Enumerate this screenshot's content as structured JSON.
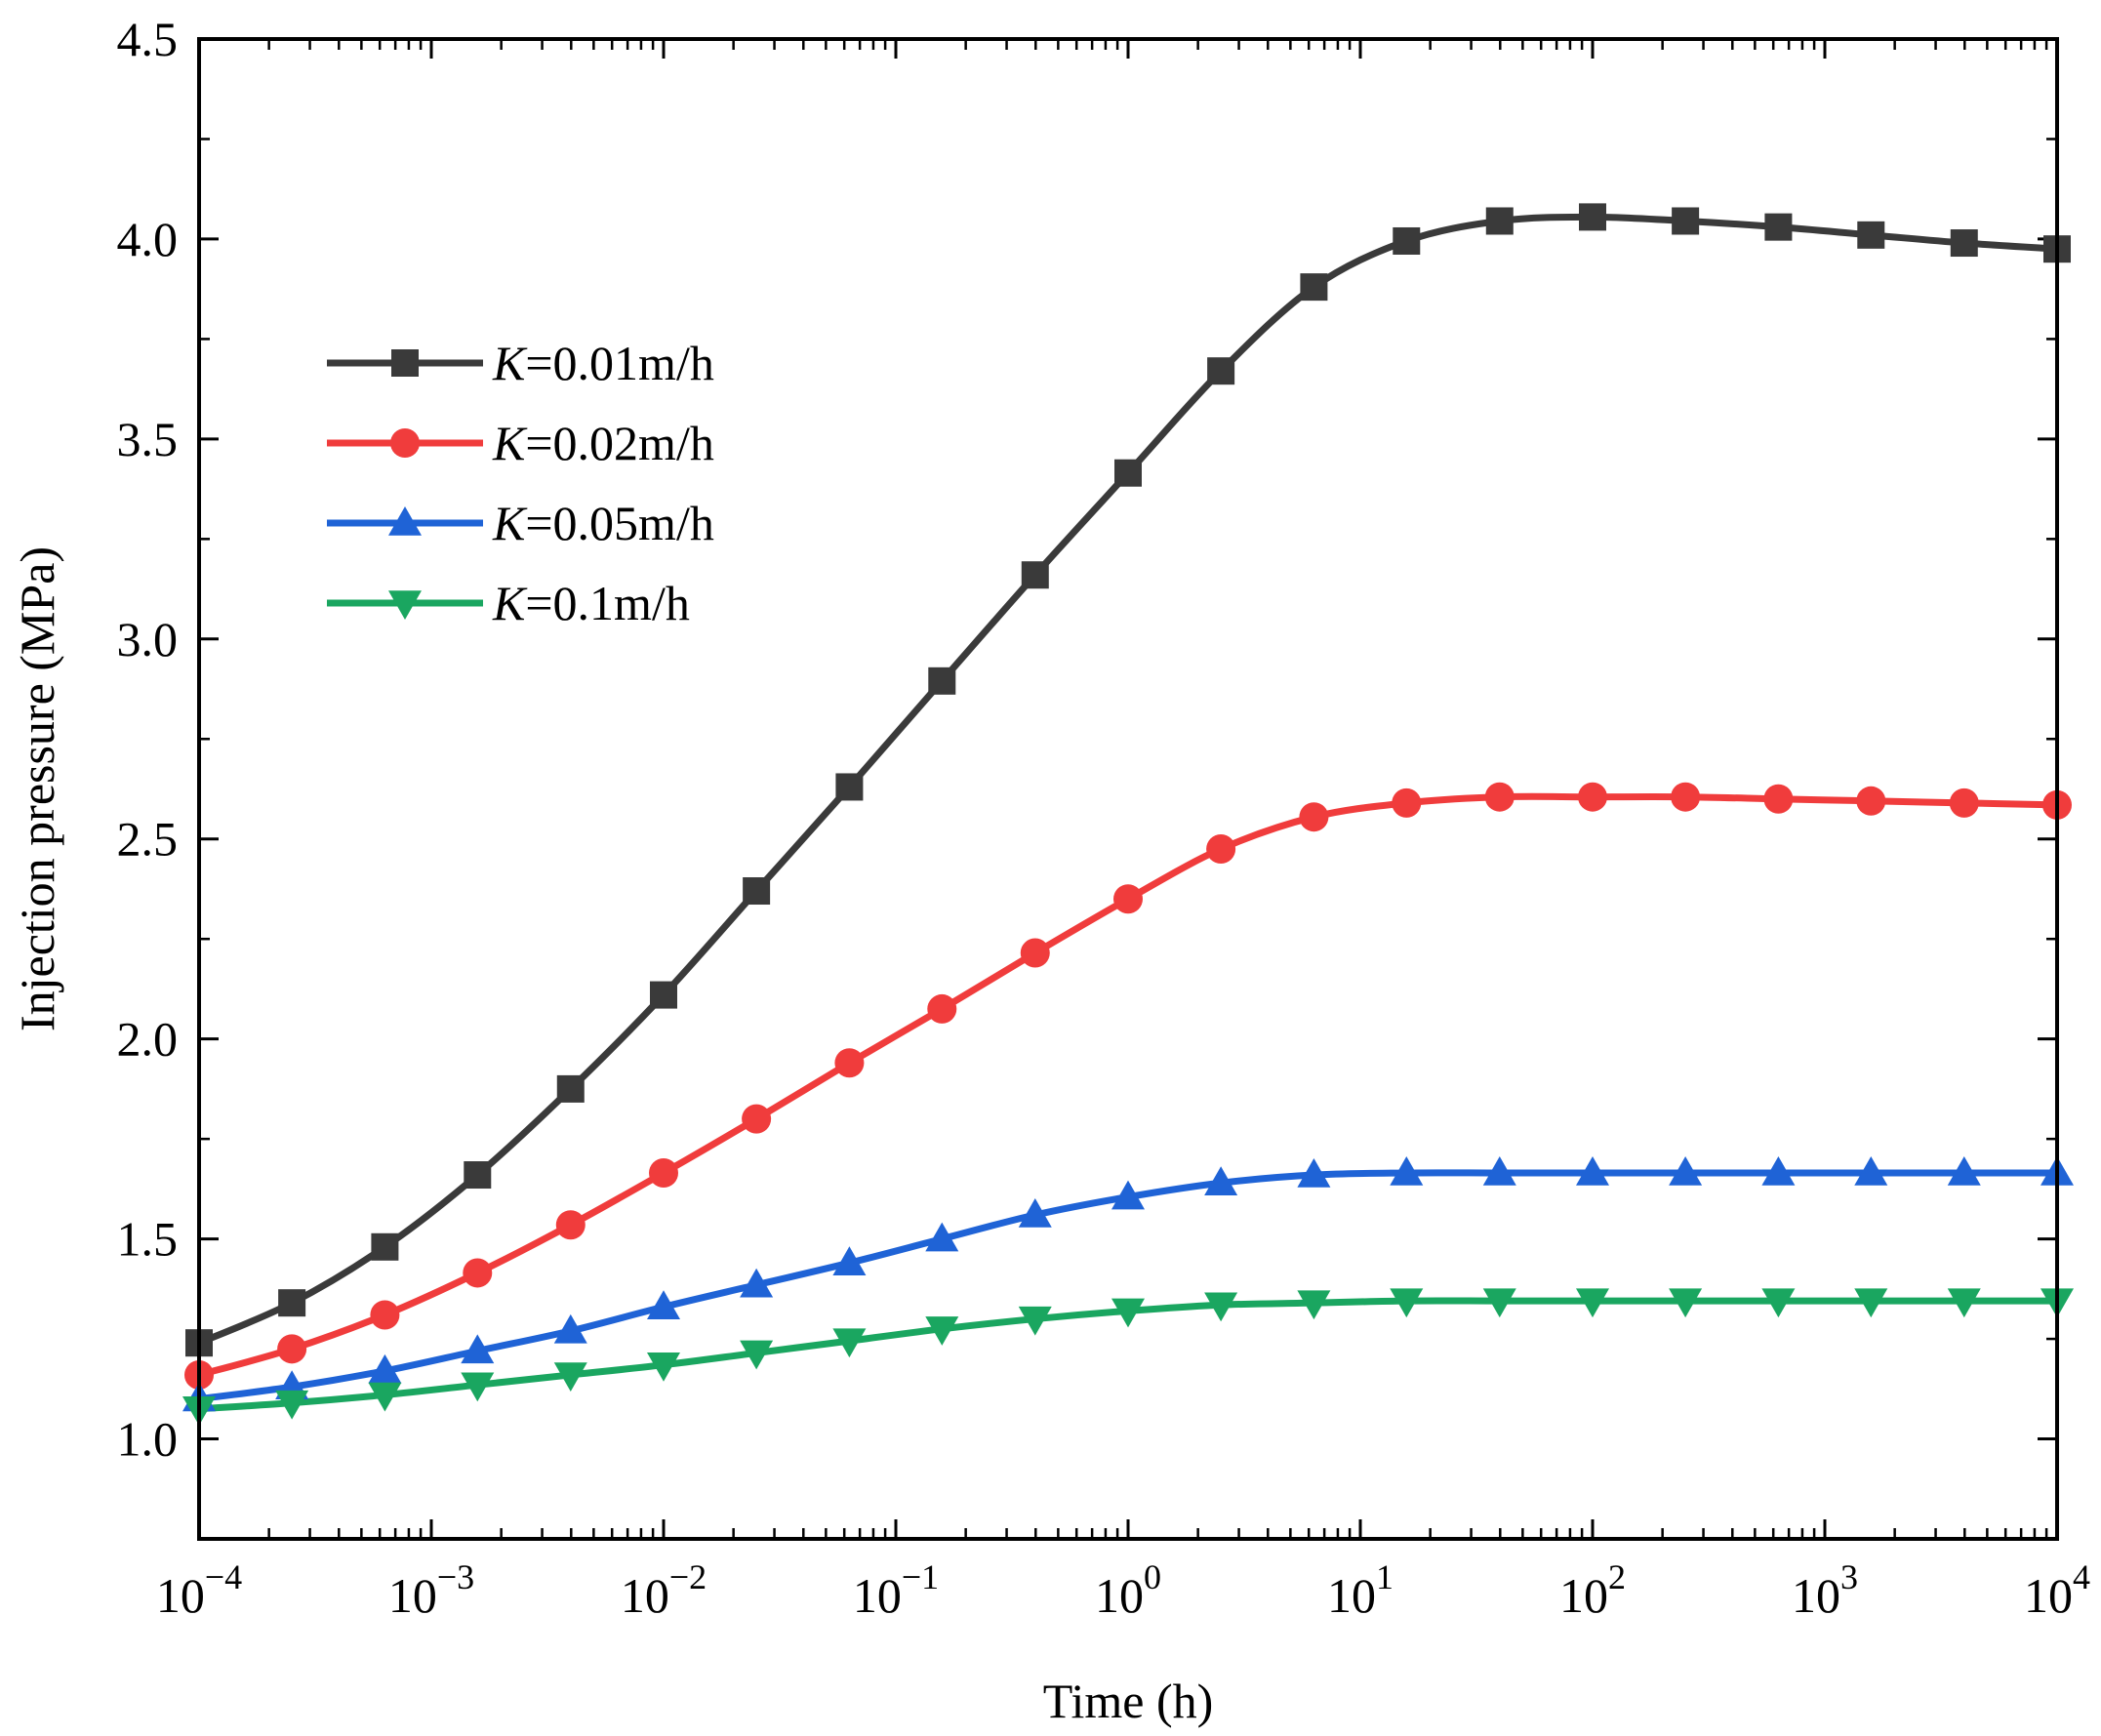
{
  "chart_data": {
    "type": "line",
    "title": "",
    "xlabel": "Time (h)",
    "ylabel": "Injection pressure (MPa)",
    "xscale": "log",
    "xlim": [
      0.0001,
      10000
    ],
    "ylim": [
      0.75,
      4.5
    ],
    "grid": false,
    "legend_position": "upper-left",
    "x_ticks": [
      {
        "base": "10",
        "exp": "−4"
      },
      {
        "base": "10",
        "exp": "−3"
      },
      {
        "base": "10",
        "exp": "−2"
      },
      {
        "base": "10",
        "exp": "−1"
      },
      {
        "base": "10",
        "exp": "0"
      },
      {
        "base": "10",
        "exp": "1"
      },
      {
        "base": "10",
        "exp": "2"
      },
      {
        "base": "10",
        "exp": "3"
      },
      {
        "base": "10",
        "exp": "4"
      }
    ],
    "y_ticks": [
      "1.0",
      "1.5",
      "2.0",
      "2.5",
      "3.0",
      "3.5",
      "4.0",
      "4.5"
    ],
    "x": [
      0.0001,
      0.000251,
      0.000631,
      0.00158,
      0.00398,
      0.01,
      0.0251,
      0.0631,
      0.158,
      0.398,
      1,
      2.51,
      6.31,
      15.8,
      39.8,
      100,
      251,
      631,
      1580,
      3980,
      10000
    ],
    "series": [
      {
        "name": "K=0.01m/h",
        "label_var": "K",
        "label_rest": "=0.01m/h",
        "color": "#3a3a3a",
        "marker": "square",
        "values": [
          1.24,
          1.34,
          1.48,
          1.66,
          1.875,
          2.11,
          2.37,
          2.63,
          2.895,
          3.16,
          3.415,
          3.67,
          3.88,
          3.995,
          4.045,
          4.055,
          4.045,
          4.03,
          4.01,
          3.99,
          3.975
        ]
      },
      {
        "name": "K=0.02m/h",
        "label_var": "K",
        "label_rest": "=0.02m/h",
        "color": "#f03c3c",
        "marker": "circle",
        "values": [
          1.16,
          1.225,
          1.31,
          1.415,
          1.535,
          1.665,
          1.8,
          1.94,
          2.075,
          2.215,
          2.35,
          2.475,
          2.555,
          2.59,
          2.605,
          2.605,
          2.605,
          2.6,
          2.595,
          2.59,
          2.585
        ]
      },
      {
        "name": "K=0.05m/h",
        "label_var": "K",
        "label_rest": "=0.05m/h",
        "color": "#1f63d6",
        "marker": "triangle-up",
        "values": [
          1.1,
          1.13,
          1.17,
          1.22,
          1.27,
          1.33,
          1.385,
          1.44,
          1.5,
          1.56,
          1.605,
          1.64,
          1.66,
          1.665,
          1.665,
          1.665,
          1.665,
          1.665,
          1.665,
          1.665,
          1.665
        ]
      },
      {
        "name": "K=0.1m/h",
        "label_var": "K",
        "label_rest": "=0.1m/h",
        "color": "#1aa660",
        "marker": "triangle-down",
        "values": [
          1.075,
          1.09,
          1.11,
          1.135,
          1.16,
          1.185,
          1.215,
          1.245,
          1.275,
          1.3,
          1.32,
          1.335,
          1.34,
          1.345,
          1.345,
          1.345,
          1.345,
          1.345,
          1.345,
          1.345,
          1.345
        ]
      }
    ]
  }
}
